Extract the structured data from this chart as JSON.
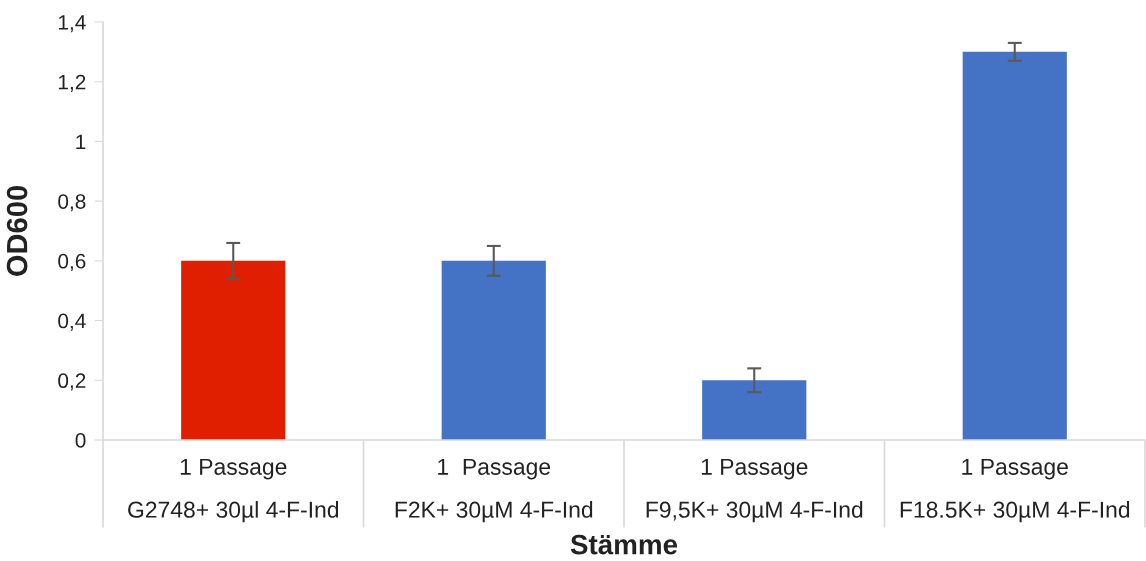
{
  "chart_data": {
    "type": "bar",
    "xlabel": "Stämme",
    "ylabel": "OD600",
    "categories": [
      "1 Passage\nG2748+ 30µl 4-F-Ind",
      "1  Passage\nF2K+ 30µM 4-F-Ind",
      "1 Passage\nF9,5K+ 30µM 4-F-Ind",
      "1 Passage\nF18.5K+ 30µM 4-F-Ind"
    ],
    "values": [
      0.6,
      0.6,
      0.2,
      1.3
    ],
    "colors": [
      "#e01f00",
      "#4472c4",
      "#4472c4",
      "#4472c4"
    ],
    "errors": [
      0.06,
      0.05,
      0.04,
      0.03
    ],
    "ylim": [
      0,
      1.4
    ],
    "yticks": [
      0,
      {
        "value": 0.2,
        "label": "0,2"
      },
      {
        "value": 0.4,
        "label": "0,4"
      },
      {
        "value": 0.6,
        "label": "0,6"
      },
      {
        "value": 0.8,
        "label": "0,8"
      },
      1,
      {
        "value": 1.2,
        "label": "1,2"
      },
      {
        "value": 1.4,
        "label": "1,4"
      }
    ]
  }
}
